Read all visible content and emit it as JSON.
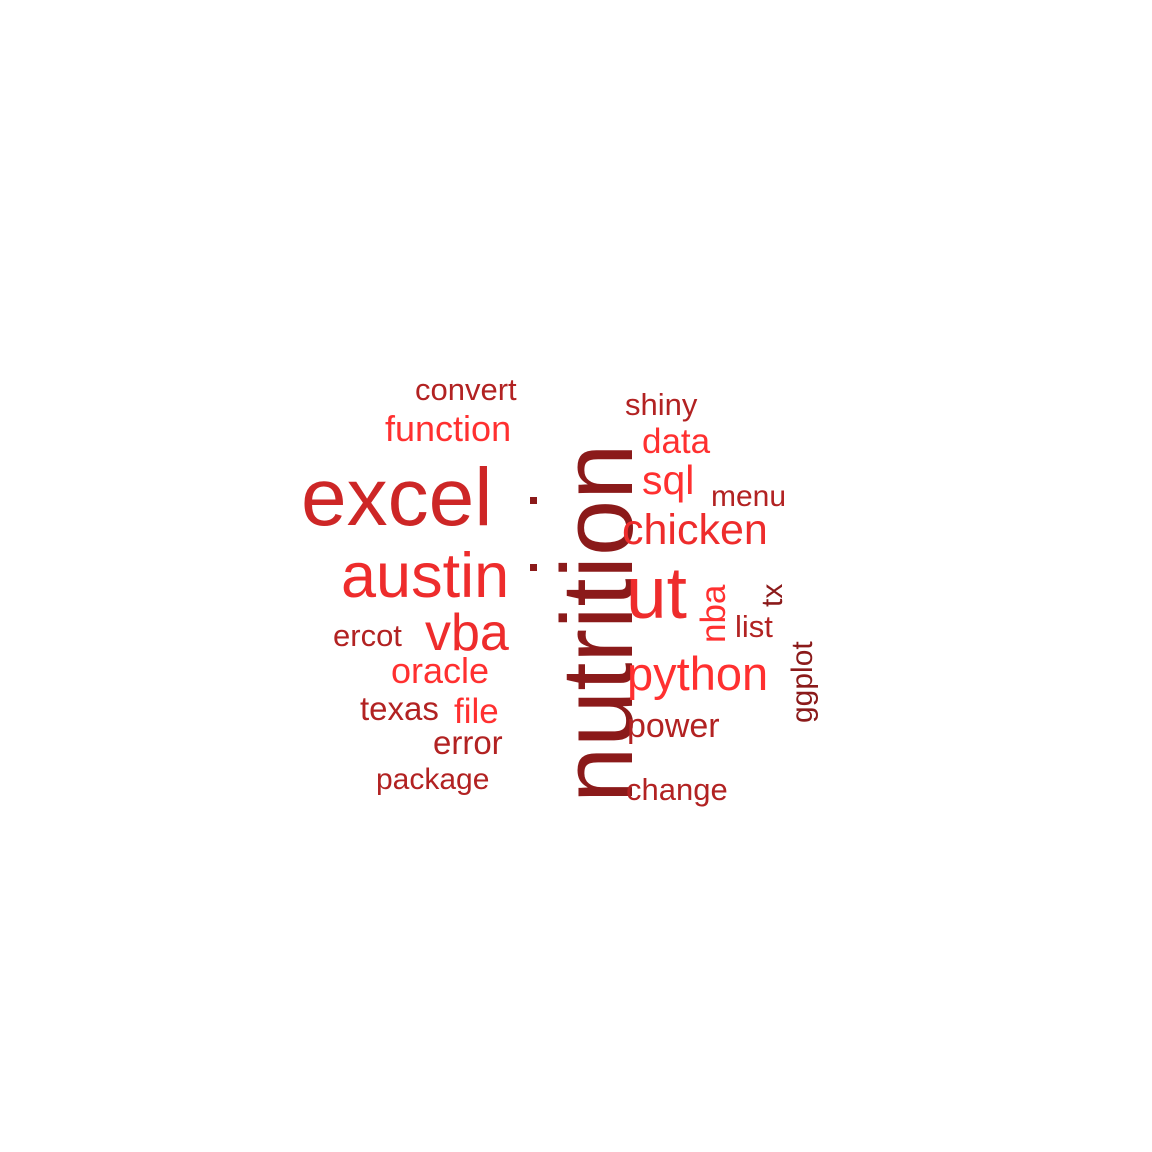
{
  "palette": {
    "dark": "#8b1a1a",
    "mid": "#cd2626",
    "bright": "#ee2c2c",
    "light": "#ff3030",
    "deep": "#b22222"
  },
  "words": [
    {
      "text": "nutrition",
      "color": "#8b1a1a",
      "orientation": "vertical"
    },
    {
      "text": "excel",
      "color": "#cd2626",
      "orientation": "horizontal"
    },
    {
      "text": "austin",
      "color": "#ee2c2c",
      "orientation": "horizontal"
    },
    {
      "text": "ut",
      "color": "#ee2c2c",
      "orientation": "horizontal"
    },
    {
      "text": "vba",
      "color": "#ee2c2c",
      "orientation": "horizontal"
    },
    {
      "text": "python",
      "color": "#ff3030",
      "orientation": "horizontal"
    },
    {
      "text": "chicken",
      "color": "#ee2c2c",
      "orientation": "horizontal"
    },
    {
      "text": "oracle",
      "color": "#ff3030",
      "orientation": "horizontal"
    },
    {
      "text": "function",
      "color": "#ff3030",
      "orientation": "horizontal"
    },
    {
      "text": "sql",
      "color": "#ff3030",
      "orientation": "horizontal"
    },
    {
      "text": "data",
      "color": "#ff3030",
      "orientation": "horizontal"
    },
    {
      "text": "shiny",
      "color": "#b22222",
      "orientation": "horizontal"
    },
    {
      "text": "convert",
      "color": "#b22222",
      "orientation": "horizontal"
    },
    {
      "text": "menu",
      "color": "#b22222",
      "orientation": "horizontal"
    },
    {
      "text": "power",
      "color": "#b22222",
      "orientation": "horizontal"
    },
    {
      "text": "ercot",
      "color": "#b22222",
      "orientation": "horizontal"
    },
    {
      "text": "texas",
      "color": "#b22222",
      "orientation": "horizontal"
    },
    {
      "text": "file",
      "color": "#ff3030",
      "orientation": "horizontal"
    },
    {
      "text": "error",
      "color": "#b22222",
      "orientation": "horizontal"
    },
    {
      "text": "package",
      "color": "#b22222",
      "orientation": "horizontal"
    },
    {
      "text": "change",
      "color": "#b22222",
      "orientation": "horizontal"
    },
    {
      "text": "list",
      "color": "#b22222",
      "orientation": "horizontal"
    },
    {
      "text": "nba",
      "color": "#ff3030",
      "orientation": "vertical"
    },
    {
      "text": "tx",
      "color": "#8b1a1a",
      "orientation": "vertical"
    },
    {
      "text": "ggplot",
      "color": "#8b1a1a",
      "orientation": "vertical"
    }
  ]
}
